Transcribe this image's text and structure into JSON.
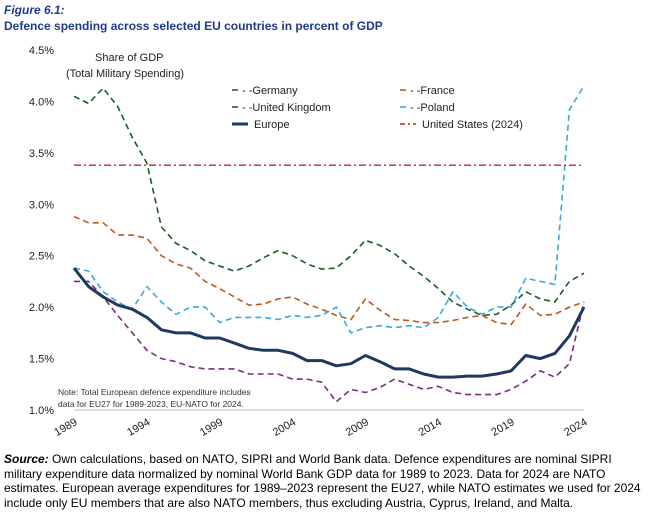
{
  "figure": {
    "label": "Figure 6.1:",
    "title": "Defence spending across selected EU countries in percent of GDP"
  },
  "chart_data": {
    "type": "line",
    "title": "Defence spending across selected EU countries in percent of GDP",
    "ylabel_line1": "Share of GDP",
    "ylabel_line2": "(Total Military Spending)",
    "ylim": [
      1.0,
      4.5
    ],
    "yticks": [
      1.0,
      1.5,
      2.0,
      2.5,
      3.0,
      3.5,
      4.0,
      4.5
    ],
    "ytick_labels": [
      "1.0%",
      "1.5%",
      "2.0%",
      "2.5%",
      "3.0%",
      "3.5%",
      "4.0%",
      "4.5%"
    ],
    "xlim": [
      1989,
      2024
    ],
    "xticks": [
      1989,
      1994,
      1999,
      2004,
      2009,
      2014,
      2019,
      2024
    ],
    "xtick_labels": [
      "1989",
      "1994",
      "1999",
      "2004",
      "2009",
      "2014",
      "2019",
      "2024"
    ],
    "note_line1": "Note: Total European defence expenditure includes",
    "note_line2": "data for EU27 for 1989-2023, EU-NATO for 2024.",
    "legend_position": "top-center",
    "series": [
      {
        "name": "Germany",
        "legend_label": "- -Germany",
        "color": "#7b2d7b",
        "dash": "dash",
        "width": 1.6,
        "x": [
          1989,
          1990,
          1991,
          1992,
          1993,
          1994,
          1995,
          1996,
          1997,
          1998,
          1999,
          2000,
          2001,
          2002,
          2003,
          2004,
          2005,
          2006,
          2007,
          2008,
          2009,
          2010,
          2011,
          2012,
          2013,
          2014,
          2015,
          2016,
          2017,
          2018,
          2019,
          2020,
          2021,
          2022,
          2023,
          2024
        ],
        "y": [
          2.25,
          2.25,
          2.1,
          1.92,
          1.75,
          1.58,
          1.5,
          1.47,
          1.42,
          1.4,
          1.4,
          1.4,
          1.35,
          1.35,
          1.35,
          1.3,
          1.3,
          1.27,
          1.08,
          1.2,
          1.17,
          1.22,
          1.3,
          1.25,
          1.2,
          1.23,
          1.17,
          1.15,
          1.15,
          1.15,
          1.2,
          1.28,
          1.38,
          1.32,
          1.45,
          2.05
        ]
      },
      {
        "name": "France",
        "legend_label": "- -France",
        "color": "#c0571f",
        "dash": "dash",
        "width": 1.6,
        "x": [
          1989,
          1990,
          1991,
          1992,
          1993,
          1994,
          1995,
          1996,
          1997,
          1998,
          1999,
          2000,
          2001,
          2002,
          2003,
          2004,
          2005,
          2006,
          2007,
          2008,
          2009,
          2010,
          2011,
          2012,
          2013,
          2014,
          2015,
          2016,
          2017,
          2018,
          2019,
          2020,
          2021,
          2022,
          2023,
          2024
        ],
        "y": [
          2.88,
          2.82,
          2.82,
          2.7,
          2.7,
          2.67,
          2.5,
          2.42,
          2.38,
          2.25,
          2.18,
          2.1,
          2.02,
          2.03,
          2.08,
          2.1,
          2.03,
          1.98,
          1.92,
          1.88,
          2.08,
          1.97,
          1.88,
          1.87,
          1.85,
          1.85,
          1.87,
          1.9,
          1.92,
          1.85,
          1.83,
          2.03,
          1.92,
          1.93,
          2.0,
          2.05
        ]
      },
      {
        "name": "United Kingdom",
        "legend_label": "- -United Kingdom",
        "color": "#1e5c27",
        "dash": "dash",
        "width": 1.6,
        "x": [
          1989,
          1990,
          1991,
          1992,
          1993,
          1994,
          1995,
          1996,
          1997,
          1998,
          1999,
          2000,
          2001,
          2002,
          2003,
          2004,
          2005,
          2006,
          2007,
          2008,
          2009,
          2010,
          2011,
          2012,
          2013,
          2014,
          2015,
          2016,
          2017,
          2018,
          2019,
          2020,
          2021,
          2022,
          2023,
          2024
        ],
        "y": [
          4.05,
          3.98,
          4.13,
          3.95,
          3.65,
          3.4,
          2.78,
          2.62,
          2.55,
          2.45,
          2.4,
          2.35,
          2.4,
          2.48,
          2.55,
          2.5,
          2.42,
          2.37,
          2.38,
          2.5,
          2.65,
          2.6,
          2.52,
          2.4,
          2.3,
          2.18,
          2.05,
          1.98,
          1.92,
          1.93,
          2.02,
          2.15,
          2.08,
          2.05,
          2.25,
          2.33
        ]
      },
      {
        "name": "Poland",
        "legend_label": "- -Poland",
        "color": "#36a9e1",
        "dash": "dash",
        "width": 1.6,
        "x": [
          1989,
          1990,
          1991,
          1992,
          1993,
          1994,
          1995,
          1996,
          1997,
          1998,
          1999,
          2000,
          2001,
          2002,
          2003,
          2004,
          2005,
          2006,
          2007,
          2008,
          2009,
          2010,
          2011,
          2012,
          2013,
          2014,
          2015,
          2016,
          2017,
          2018,
          2019,
          2020,
          2021,
          2022,
          2023,
          2024
        ],
        "y": [
          2.38,
          2.35,
          2.15,
          2.05,
          1.98,
          2.2,
          2.05,
          1.93,
          2.0,
          2.0,
          1.85,
          1.9,
          1.9,
          1.9,
          1.88,
          1.92,
          1.9,
          1.92,
          2.0,
          1.75,
          1.8,
          1.82,
          1.8,
          1.82,
          1.8,
          1.9,
          2.15,
          2.0,
          1.93,
          2.0,
          2.0,
          2.28,
          2.25,
          2.22,
          3.92,
          4.15
        ]
      },
      {
        "name": "Europe",
        "legend_label": "Europe",
        "color": "#1f3a5f",
        "dash": "solid",
        "width": 3,
        "x": [
          1989,
          1990,
          1991,
          1992,
          1993,
          1994,
          1995,
          1996,
          1997,
          1998,
          1999,
          2000,
          2001,
          2002,
          2003,
          2004,
          2005,
          2006,
          2007,
          2008,
          2009,
          2010,
          2011,
          2012,
          2013,
          2014,
          2015,
          2016,
          2017,
          2018,
          2019,
          2020,
          2021,
          2022,
          2023,
          2024
        ],
        "y": [
          2.38,
          2.2,
          2.1,
          2.02,
          1.98,
          1.9,
          1.78,
          1.75,
          1.75,
          1.7,
          1.7,
          1.65,
          1.6,
          1.58,
          1.58,
          1.55,
          1.48,
          1.48,
          1.43,
          1.45,
          1.53,
          1.47,
          1.4,
          1.4,
          1.35,
          1.32,
          1.32,
          1.33,
          1.33,
          1.35,
          1.38,
          1.53,
          1.5,
          1.55,
          1.72,
          2.0
        ]
      },
      {
        "name": "United States (2024)",
        "legend_label": "United States (2024)",
        "color": "#c1272d",
        "dash": "dashdot",
        "width": 1.4,
        "x": [
          1989,
          2024
        ],
        "y": [
          3.38,
          3.38
        ]
      }
    ]
  },
  "source": {
    "label": "Source:",
    "text": "Own calculations, based on NATO, SIPRI and World Bank data. Defence expenditures are nominal SIPRI military expenditure data normalized by nominal World Bank GDP data for 1989 to 2023. Data for 2024 are NATO estimates. European average expenditures for 1989–2023 represent the EU27, while NATO estimates we used for 2024 include only EU members that are also NATO members, thus excluding Austria, Cyprus, Ireland, and Malta."
  }
}
